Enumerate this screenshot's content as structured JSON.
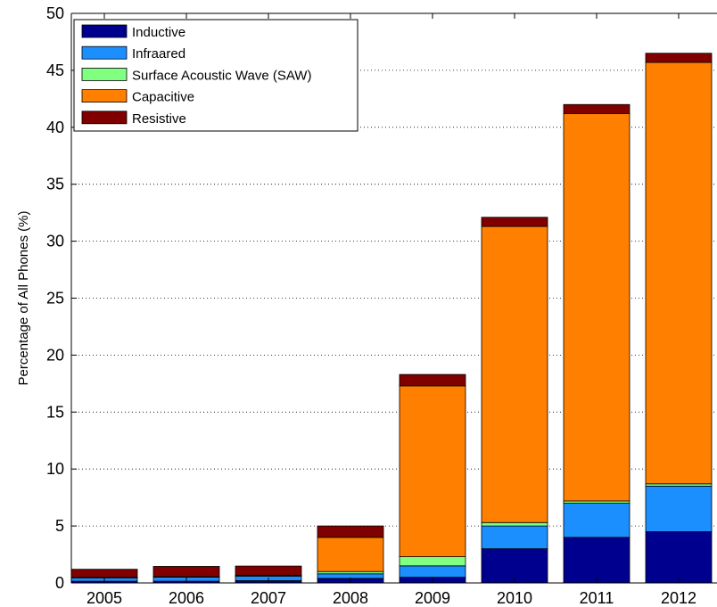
{
  "chart_data": {
    "type": "bar",
    "stacked": true,
    "title": "",
    "xlabel": "",
    "ylabel": "Percentage of All Phones (%)",
    "ylim": [
      0,
      50
    ],
    "yticks": [
      0,
      5,
      10,
      15,
      20,
      25,
      30,
      35,
      40,
      45,
      50
    ],
    "grid": true,
    "legend_position": "top-left",
    "categories": [
      "2005",
      "2006",
      "2007",
      "2008",
      "2009",
      "2010",
      "2011",
      "2012"
    ],
    "series": [
      {
        "name": "Inductive",
        "color": "#00008f",
        "values": [
          0.15,
          0.15,
          0.2,
          0.4,
          0.5,
          3.0,
          4.0,
          4.5
        ]
      },
      {
        "name": "Infraared",
        "color": "#1c8fff",
        "values": [
          0.3,
          0.35,
          0.4,
          0.4,
          1.0,
          2.0,
          3.0,
          4.0
        ]
      },
      {
        "name": "Surface Acoustic Wave (SAW)",
        "color": "#80ff80",
        "values": [
          0.02,
          0.02,
          0.03,
          0.2,
          0.8,
          0.3,
          0.2,
          0.2
        ]
      },
      {
        "name": "Capacitive",
        "color": "#ff7f00",
        "values": [
          0.03,
          0.03,
          0.05,
          3.0,
          15.0,
          26.0,
          34.0,
          37.0
        ]
      },
      {
        "name": "Resistive",
        "color": "#800000",
        "values": [
          0.7,
          0.9,
          0.8,
          1.0,
          1.0,
          0.8,
          0.8,
          0.8
        ]
      }
    ]
  }
}
